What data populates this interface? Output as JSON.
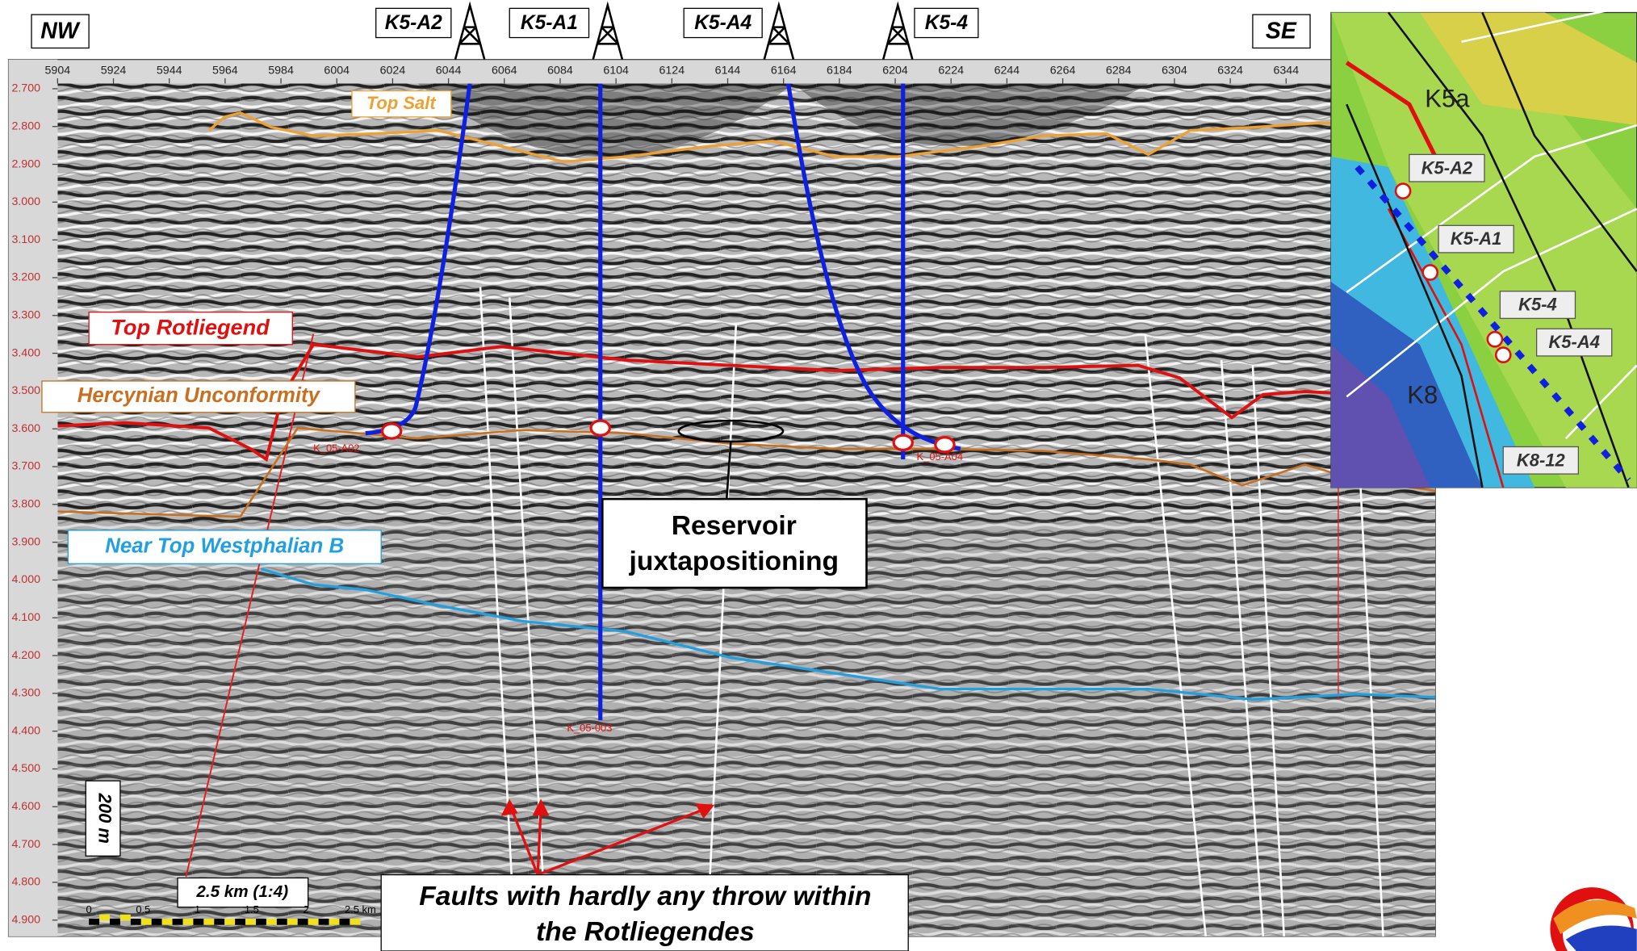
{
  "header": {
    "left_direction": "NW",
    "right_direction": "SE"
  },
  "wells": [
    "K5-A2",
    "K5-A1",
    "K5-A4",
    "K5-4"
  ],
  "trace_axis": [
    "5904",
    "5924",
    "5944",
    "5964",
    "5984",
    "6004",
    "6024",
    "6044",
    "6064",
    "6084",
    "6104",
    "6124",
    "6144",
    "6164",
    "6184",
    "6204",
    "6224",
    "6244",
    "6264",
    "6284",
    "6304",
    "6324",
    "6344"
  ],
  "depth_axis": [
    "2.700",
    "2.800",
    "2.900",
    "3.000",
    "3.100",
    "3.200",
    "3.300",
    "3.400",
    "3.500",
    "3.600",
    "3.700",
    "3.800",
    "3.900",
    "4.000",
    "4.100",
    "4.200",
    "4.300",
    "4.400",
    "4.500",
    "4.600",
    "4.700",
    "4.800",
    "4.900"
  ],
  "horizons": [
    "Top Salt",
    "Top Rotliegend",
    "Hercynian Unconformity",
    "Near Top Westphalian B"
  ],
  "well_tags": [
    "K_05-A02",
    "K_05-003",
    "K_05-A04"
  ],
  "annotations": {
    "reservoir": [
      "Reservoir",
      "juxtapositioning"
    ],
    "faults": [
      "Faults with hardly any throw within",
      "the Rotliegendes"
    ]
  },
  "scale": {
    "vertical": "200 m",
    "horizontal": "2.5 km (1:4)",
    "bar_ticks": [
      "0",
      "0.5",
      "1",
      "1.5",
      "2",
      "2.5 km"
    ]
  },
  "map": {
    "blocks": [
      "K5a",
      "K8"
    ],
    "wells": [
      "K5-A2",
      "K5-A1",
      "K5-4",
      "K5-A4",
      "K8-12"
    ]
  }
}
